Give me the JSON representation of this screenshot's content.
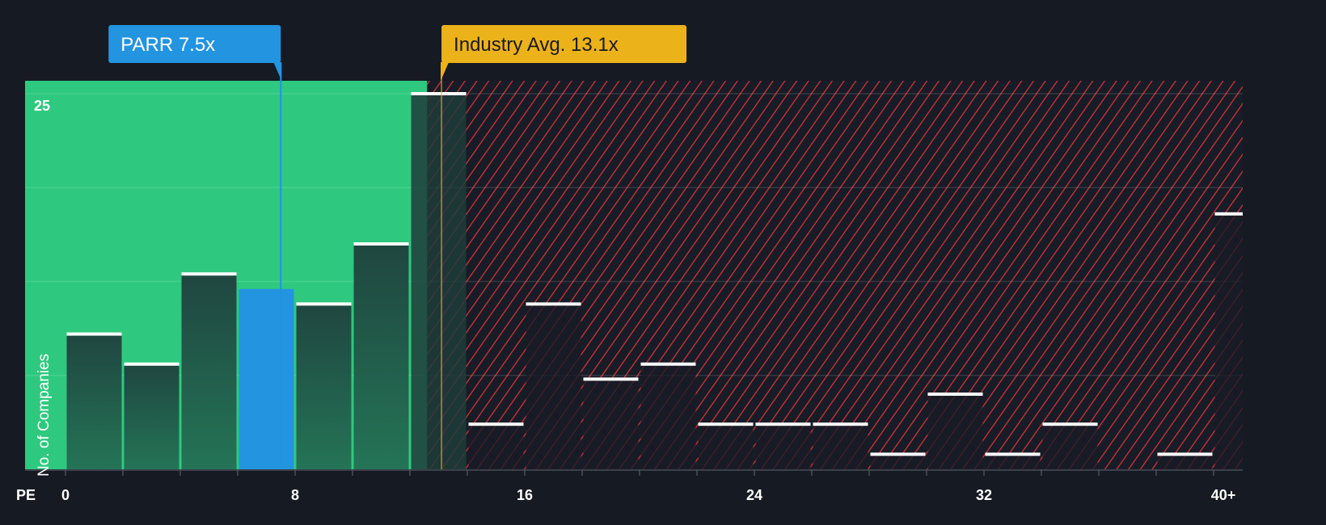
{
  "chart_data": {
    "type": "bar",
    "title": "",
    "xlabel": "PE",
    "ylabel": "No. of Companies",
    "x_tick_labels": [
      "0",
      "8",
      "16",
      "24",
      "32",
      "40+"
    ],
    "x_tick_values": [
      0,
      8,
      16,
      24,
      32,
      40
    ],
    "y_tick_labels": [
      "25"
    ],
    "y_tick_values": [
      25
    ],
    "ylim": [
      0,
      26
    ],
    "xlim": [
      0,
      41
    ],
    "bin_width": 2,
    "bins": [
      {
        "start": 0,
        "value": 9
      },
      {
        "start": 2,
        "value": 7
      },
      {
        "start": 4,
        "value": 13
      },
      {
        "start": 6,
        "value": 12,
        "highlight": true
      },
      {
        "start": 8,
        "value": 11
      },
      {
        "start": 10,
        "value": 15
      },
      {
        "start": 12,
        "value": 25
      },
      {
        "start": 14,
        "value": 3
      },
      {
        "start": 16,
        "value": 11
      },
      {
        "start": 18,
        "value": 6
      },
      {
        "start": 20,
        "value": 7
      },
      {
        "start": 22,
        "value": 3
      },
      {
        "start": 24,
        "value": 3
      },
      {
        "start": 26,
        "value": 3
      },
      {
        "start": 28,
        "value": 1
      },
      {
        "start": 30,
        "value": 5
      },
      {
        "start": 32,
        "value": 1
      },
      {
        "start": 34,
        "value": 3
      },
      {
        "start": 36,
        "value": 0
      },
      {
        "start": 38,
        "value": 1
      },
      {
        "start": 40,
        "value": 17
      }
    ],
    "markers": [
      {
        "label": "PARR 7.5x",
        "value": 7.5,
        "color": "#2394df"
      },
      {
        "label": "Industry Avg. 13.1x",
        "value": 13.1,
        "color": "#ecb21a"
      }
    ],
    "undervalued_region_end": 12.6,
    "colors": {
      "green": "#2ec97f",
      "red": "#e0333d",
      "highlight": "#2394df",
      "background": "#151a23"
    }
  }
}
